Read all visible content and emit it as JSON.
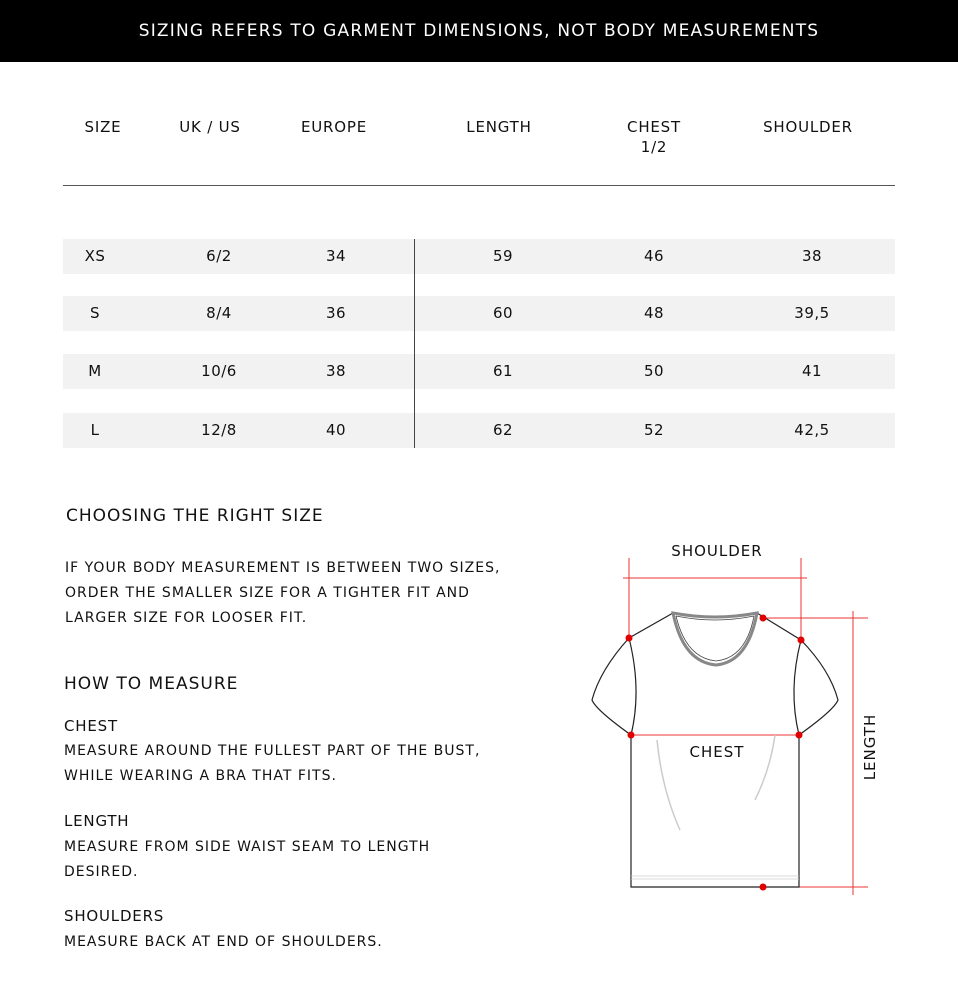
{
  "banner": "SIZING REFERS TO GARMENT DIMENSIONS, NOT BODY MEASUREMENTS",
  "table": {
    "headers": [
      "SIZE",
      "UK / US",
      "EUROPE",
      "LENGTH",
      "CHEST",
      "SHOULDER"
    ],
    "chest_sub": "1/2",
    "rows": [
      [
        "XS",
        "6/2",
        "34",
        "59",
        "46",
        "38"
      ],
      [
        "S",
        "8/4",
        "36",
        "60",
        "48",
        "39,5"
      ],
      [
        "M",
        "10/6",
        "38",
        "61",
        "50",
        "41"
      ],
      [
        "L",
        "12/8",
        "40",
        "62",
        "52",
        "42,5"
      ]
    ],
    "row_bg": "#f2f2f2"
  },
  "choosing": {
    "title": "CHOOSING THE RIGHT SIZE",
    "lines": [
      "IF YOUR BODY MEASUREMENT IS BETWEEN TWO SIZES,",
      "ORDER THE SMALLER SIZE FOR A TIGHTER FIT AND",
      "LARGER SIZE FOR LOOSER FIT."
    ]
  },
  "measure": {
    "title": "HOW TO MEASURE",
    "items": [
      {
        "title": "CHEST",
        "lines": [
          "MEASURE AROUND THE FULLEST PART OF THE BUST,",
          "WHILE WEARING A BRA THAT FITS."
        ]
      },
      {
        "title": "LENGTH",
        "lines": [
          "MEASURE FROM SIDE WAIST SEAM TO LENGTH",
          "DESIRED."
        ]
      },
      {
        "title": "SHOULDERS",
        "lines": [
          "MEASURE BACK AT END OF SHOULDERS."
        ]
      }
    ]
  },
  "diagram": {
    "shoulder_label": "SHOULDER",
    "chest_label": "CHEST",
    "length_label": "LENGTH",
    "marker_color": "#e00000"
  }
}
